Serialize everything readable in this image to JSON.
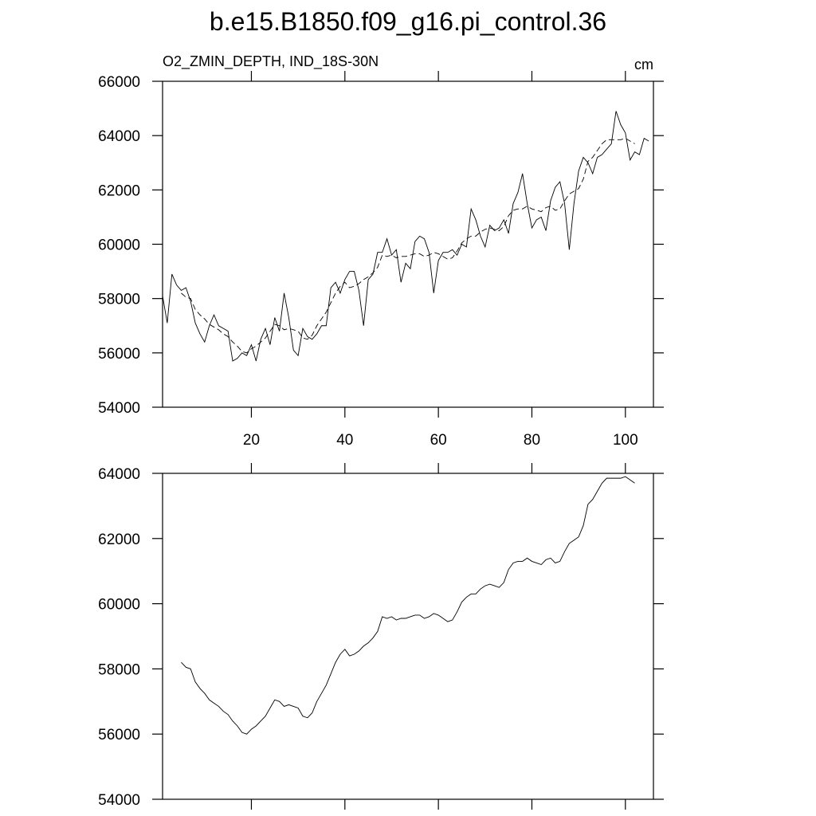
{
  "chart_data": [
    {
      "type": "line",
      "title": "b.e15.B1850.f09_g16.pi_control.36",
      "left_string": "O2_ZMIN_DEPTH, IND_18S-30N",
      "right_string": "cm",
      "x": [
        1,
        2,
        3,
        4,
        5,
        6,
        7,
        8,
        9,
        10,
        11,
        12,
        13,
        14,
        15,
        16,
        17,
        18,
        19,
        20,
        21,
        22,
        23,
        24,
        25,
        26,
        27,
        28,
        29,
        30,
        31,
        32,
        33,
        34,
        35,
        36,
        37,
        38,
        39,
        40,
        41,
        42,
        43,
        44,
        45,
        46,
        47,
        48,
        49,
        50,
        51,
        52,
        53,
        54,
        55,
        56,
        57,
        58,
        59,
        60,
        61,
        62,
        63,
        64,
        65,
        66,
        67,
        68,
        69,
        70,
        71,
        72,
        73,
        74,
        75,
        76,
        77,
        78,
        79,
        80,
        81,
        82,
        83,
        84,
        85,
        86,
        87,
        88,
        89,
        90,
        91,
        92,
        93,
        94,
        95,
        96,
        97,
        98,
        99,
        100,
        101,
        102,
        103,
        104,
        105
      ],
      "series": [
        {
          "color": "#000000",
          "dashed": false,
          "values": [
            58100,
            57100,
            58900,
            58500,
            58300,
            58400,
            57900,
            57100,
            56700,
            56400,
            57000,
            57400,
            57000,
            56900,
            56800,
            55700,
            55800,
            56000,
            55900,
            56300,
            55700,
            56500,
            56900,
            56300,
            57300,
            56800,
            58200,
            57300,
            56100,
            55900,
            56900,
            56600,
            56500,
            56700,
            57000,
            57000,
            58400,
            58600,
            58200,
            58700,
            59000,
            59000,
            58300,
            57000,
            58700,
            58900,
            59700,
            59700,
            60200,
            59600,
            59800,
            58600,
            59300,
            59100,
            60100,
            60300,
            60200,
            59700,
            58200,
            59400,
            59700,
            59700,
            59800,
            59600,
            60000,
            59900,
            61300,
            60900,
            60300,
            59900,
            60700,
            60500,
            60600,
            60900,
            60400,
            61500,
            61900,
            62600,
            61500,
            60600,
            60900,
            61000,
            60500,
            61600,
            62100,
            62300,
            61500,
            59800,
            61500,
            62700,
            63200,
            63000,
            62600,
            63200,
            63300,
            63500,
            63700,
            64900,
            64400,
            64100,
            63100,
            63400,
            63300,
            63900,
            63800
          ]
        },
        {
          "color": "#000000",
          "dashed": true,
          "values": [
            null,
            null,
            null,
            null,
            58200,
            58050,
            58000,
            57600,
            57400,
            57250,
            57050,
            56950,
            56850,
            56700,
            56600,
            56400,
            56250,
            56050,
            56000,
            56150,
            56250,
            56400,
            56550,
            56800,
            57050,
            57000,
            56850,
            56900,
            56850,
            56800,
            56550,
            56500,
            56650,
            57000,
            57250,
            57500,
            57850,
            58200,
            58450,
            58600,
            58400,
            58450,
            58550,
            58700,
            58800,
            58950,
            59150,
            59600,
            59550,
            59600,
            59500,
            59550,
            59550,
            59600,
            59650,
            59650,
            59550,
            59600,
            59700,
            59650,
            59550,
            59450,
            59500,
            59750,
            60050,
            60200,
            60300,
            60300,
            60450,
            60550,
            60600,
            60550,
            60500,
            60650,
            61050,
            61250,
            61300,
            61300,
            61400,
            61300,
            61250,
            61200,
            61350,
            61400,
            61250,
            61300,
            61600,
            61850,
            61950,
            62050,
            62400,
            63050,
            63200,
            63450,
            63700,
            63850,
            63850,
            63850,
            63850,
            63900,
            63800,
            63700,
            null,
            null,
            null
          ]
        }
      ],
      "xlim": [
        1,
        106
      ],
      "xticks": [
        20,
        40,
        60,
        80,
        100
      ],
      "ylim": [
        54000,
        66000
      ],
      "yticks": [
        54000,
        56000,
        58000,
        60000,
        62000,
        64000,
        66000
      ]
    },
    {
      "type": "line",
      "x": [
        1,
        2,
        3,
        4,
        5,
        6,
        7,
        8,
        9,
        10,
        11,
        12,
        13,
        14,
        15,
        16,
        17,
        18,
        19,
        20,
        21,
        22,
        23,
        24,
        25,
        26,
        27,
        28,
        29,
        30,
        31,
        32,
        33,
        34,
        35,
        36,
        37,
        38,
        39,
        40,
        41,
        42,
        43,
        44,
        45,
        46,
        47,
        48,
        49,
        50,
        51,
        52,
        53,
        54,
        55,
        56,
        57,
        58,
        59,
        60,
        61,
        62,
        63,
        64,
        65,
        66,
        67,
        68,
        69,
        70,
        71,
        72,
        73,
        74,
        75,
        76,
        77,
        78,
        79,
        80,
        81,
        82,
        83,
        84,
        85,
        86,
        87,
        88,
        89,
        90,
        91,
        92,
        93,
        94,
        95,
        96,
        97,
        98,
        99,
        100,
        101,
        102,
        103,
        104,
        105
      ],
      "series": [
        {
          "color": "#000000",
          "dashed": false,
          "values": [
            null,
            null,
            null,
            null,
            58200,
            58050,
            58000,
            57600,
            57400,
            57250,
            57050,
            56950,
            56850,
            56700,
            56600,
            56400,
            56250,
            56050,
            56000,
            56150,
            56250,
            56400,
            56550,
            56800,
            57050,
            57000,
            56850,
            56900,
            56850,
            56800,
            56550,
            56500,
            56650,
            57000,
            57250,
            57500,
            57850,
            58200,
            58450,
            58600,
            58400,
            58450,
            58550,
            58700,
            58800,
            58950,
            59150,
            59600,
            59550,
            59600,
            59500,
            59550,
            59550,
            59600,
            59650,
            59650,
            59550,
            59600,
            59700,
            59650,
            59550,
            59450,
            59500,
            59750,
            60050,
            60200,
            60300,
            60300,
            60450,
            60550,
            60600,
            60550,
            60500,
            60650,
            61050,
            61250,
            61300,
            61300,
            61400,
            61300,
            61250,
            61200,
            61350,
            61400,
            61250,
            61300,
            61600,
            61850,
            61950,
            62050,
            62400,
            63050,
            63200,
            63450,
            63700,
            63850,
            63850,
            63850,
            63850,
            63900,
            63800,
            63700,
            null,
            null,
            null
          ]
        }
      ],
      "xlim": [
        1,
        106
      ],
      "xticks": [
        20,
        40,
        60,
        80,
        100
      ],
      "ylim": [
        54000,
        64000
      ],
      "yticks": [
        54000,
        56000,
        58000,
        60000,
        62000,
        64000
      ]
    }
  ]
}
